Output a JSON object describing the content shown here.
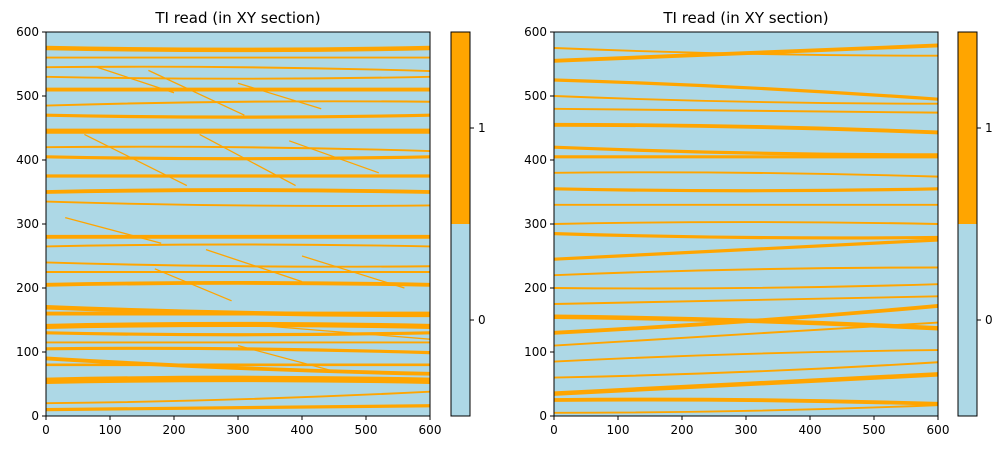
{
  "chart_data": [
    {
      "type": "heatmap",
      "title": "TI read (in XY section)",
      "xlim": [
        0,
        600
      ],
      "ylim": [
        0,
        600
      ],
      "xticks": [
        0,
        100,
        200,
        300,
        400,
        500,
        600
      ],
      "yticks": [
        0,
        100,
        200,
        300,
        400,
        500,
        600
      ],
      "categories": [
        "0",
        "1"
      ],
      "colorbar_ticks": [
        "0",
        "1"
      ],
      "colors": {
        "0": "#add8e6",
        "1": "#ffa500"
      },
      "channels": [
        {
          "y": 575,
          "w": 7,
          "s": 0.0
        },
        {
          "y": 560,
          "w": 3,
          "s": 0.0
        },
        {
          "y": 545,
          "w": 3,
          "s": -0.01
        },
        {
          "y": 530,
          "w": 3,
          "s": 0.0
        },
        {
          "y": 510,
          "w": 6,
          "s": 0.0
        },
        {
          "y": 485,
          "w": 3,
          "s": 0.01
        },
        {
          "y": 470,
          "w": 5,
          "s": 0.0
        },
        {
          "y": 445,
          "w": 8,
          "s": 0.0
        },
        {
          "y": 420,
          "w": 3,
          "s": -0.01
        },
        {
          "y": 405,
          "w": 5,
          "s": 0.0
        },
        {
          "y": 375,
          "w": 5,
          "s": 0.0
        },
        {
          "y": 350,
          "w": 6,
          "s": 0.0
        },
        {
          "y": 335,
          "w": 3,
          "s": -0.01
        },
        {
          "y": 280,
          "w": 6,
          "s": 0.0
        },
        {
          "y": 265,
          "w": 3,
          "s": 0.0
        },
        {
          "y": 240,
          "w": 3,
          "s": -0.01
        },
        {
          "y": 225,
          "w": 3,
          "s": 0.0
        },
        {
          "y": 205,
          "w": 6,
          "s": 0.0
        },
        {
          "y": 170,
          "w": 7,
          "s": -0.02
        },
        {
          "y": 160,
          "w": 6,
          "s": 0.0
        },
        {
          "y": 140,
          "w": 8,
          "s": 0.0
        },
        {
          "y": 130,
          "w": 5,
          "s": 0.0
        },
        {
          "y": 115,
          "w": 3,
          "s": 0.0
        },
        {
          "y": 105,
          "w": 5,
          "s": -0.01
        },
        {
          "y": 90,
          "w": 6,
          "s": -0.04
        },
        {
          "y": 80,
          "w": 4,
          "s": 0.0
        },
        {
          "y": 55,
          "w": 10,
          "s": 0.0
        },
        {
          "y": 20,
          "w": 3,
          "s": 0.03
        },
        {
          "y": 10,
          "w": 5,
          "s": 0.01
        }
      ],
      "diagonals": [
        {
          "x0": 80,
          "y0": 545,
          "x1": 200,
          "y1": 505
        },
        {
          "x0": 160,
          "y0": 540,
          "x1": 310,
          "y1": 470
        },
        {
          "x0": 300,
          "y0": 520,
          "x1": 430,
          "y1": 480
        },
        {
          "x0": 60,
          "y0": 440,
          "x1": 220,
          "y1": 360
        },
        {
          "x0": 240,
          "y0": 440,
          "x1": 390,
          "y1": 360
        },
        {
          "x0": 380,
          "y0": 430,
          "x1": 520,
          "y1": 380
        },
        {
          "x0": 30,
          "y0": 310,
          "x1": 180,
          "y1": 270
        },
        {
          "x0": 250,
          "y0": 260,
          "x1": 400,
          "y1": 210
        },
        {
          "x0": 400,
          "y0": 250,
          "x1": 560,
          "y1": 200
        },
        {
          "x0": 170,
          "y0": 230,
          "x1": 290,
          "y1": 180
        },
        {
          "x0": 350,
          "y0": 140,
          "x1": 600,
          "y1": 120
        },
        {
          "x0": 300,
          "y0": 110,
          "x1": 450,
          "y1": 70
        }
      ]
    },
    {
      "type": "heatmap",
      "title": "TI read (in XY section)",
      "xlim": [
        0,
        600
      ],
      "ylim": [
        0,
        600
      ],
      "xticks": [
        0,
        100,
        200,
        300,
        400,
        500,
        600
      ],
      "yticks": [
        0,
        100,
        200,
        300,
        400,
        500,
        600
      ],
      "categories": [
        "0",
        "1"
      ],
      "colorbar_ticks": [
        "0",
        "1"
      ],
      "colors": {
        "0": "#add8e6",
        "1": "#ffa500"
      },
      "channels": [
        {
          "y": 575,
          "w": 3,
          "s": -0.02
        },
        {
          "y": 555,
          "w": 6,
          "s": 0.04
        },
        {
          "y": 525,
          "w": 5,
          "s": -0.05
        },
        {
          "y": 500,
          "w": 3,
          "s": -0.02
        },
        {
          "y": 480,
          "w": 3,
          "s": -0.01
        },
        {
          "y": 455,
          "w": 6,
          "s": -0.02
        },
        {
          "y": 420,
          "w": 5,
          "s": -0.02
        },
        {
          "y": 405,
          "w": 5,
          "s": 0.0
        },
        {
          "y": 380,
          "w": 3,
          "s": -0.01
        },
        {
          "y": 355,
          "w": 5,
          "s": 0.0
        },
        {
          "y": 330,
          "w": 3,
          "s": 0.0
        },
        {
          "y": 300,
          "w": 3,
          "s": 0.0
        },
        {
          "y": 285,
          "w": 5,
          "s": -0.01
        },
        {
          "y": 245,
          "w": 5,
          "s": 0.05
        },
        {
          "y": 220,
          "w": 3,
          "s": 0.02
        },
        {
          "y": 200,
          "w": 3,
          "s": 0.01
        },
        {
          "y": 175,
          "w": 3,
          "s": 0.02
        },
        {
          "y": 155,
          "w": 7,
          "s": -0.03
        },
        {
          "y": 130,
          "w": 6,
          "s": 0.07
        },
        {
          "y": 110,
          "w": 3,
          "s": 0.06
        },
        {
          "y": 85,
          "w": 3,
          "s": 0.03
        },
        {
          "y": 60,
          "w": 3,
          "s": 0.04
        },
        {
          "y": 35,
          "w": 7,
          "s": 0.05
        },
        {
          "y": 25,
          "w": 6,
          "s": -0.01
        },
        {
          "y": 5,
          "w": 3,
          "s": 0.02
        }
      ],
      "diagonals": []
    }
  ]
}
